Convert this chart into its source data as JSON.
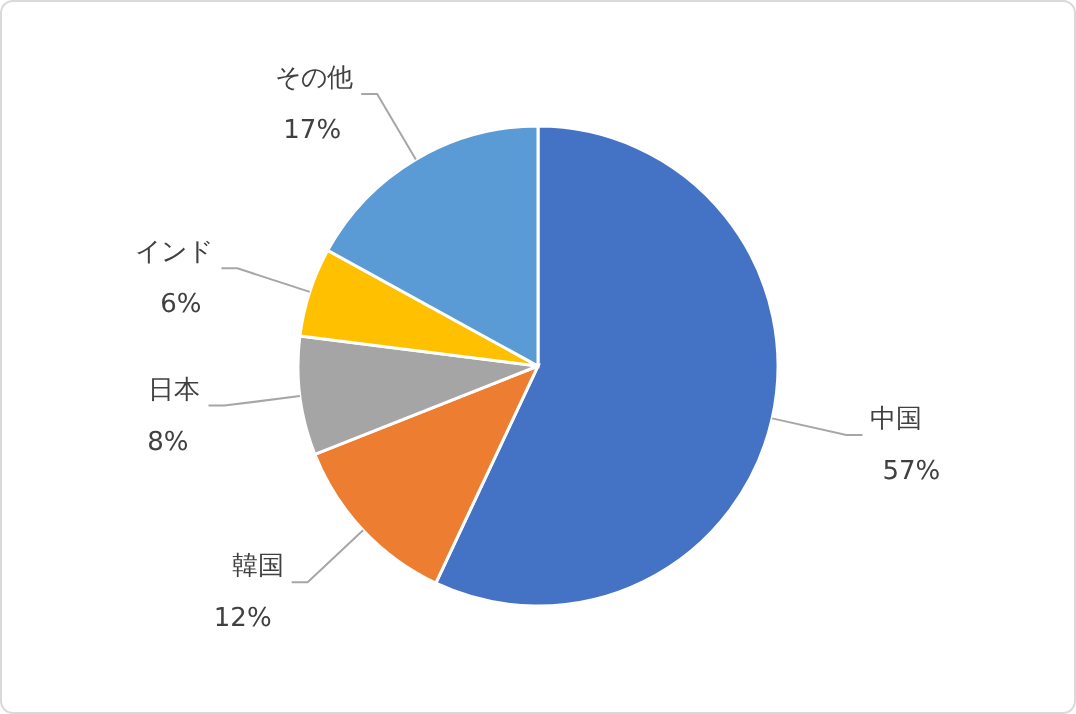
{
  "chart_data": {
    "type": "pie",
    "categories": [
      "中国",
      "韓国",
      "日本",
      "インド",
      "その他"
    ],
    "values": [
      57,
      12,
      8,
      6,
      17
    ],
    "value_labels": [
      "57%",
      "12%",
      "8%",
      "6%",
      "17%"
    ],
    "colors": [
      "#4472c4",
      "#ed7d31",
      "#a5a5a5",
      "#ffc000",
      "#5b9bd5"
    ]
  }
}
